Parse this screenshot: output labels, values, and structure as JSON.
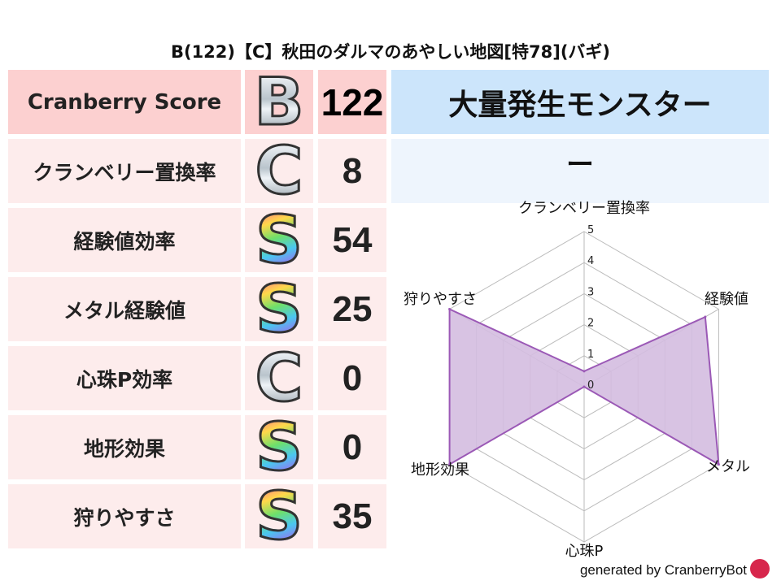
{
  "title": "B(122)【C】秋田のダルマのあやしい地図[特78](バギ)",
  "score_table": {
    "header": {
      "label": "Cranberry Score",
      "grade": "B",
      "value": "122"
    },
    "rows": [
      {
        "label": "クランベリー置換率",
        "grade": "C",
        "value": "8"
      },
      {
        "label": "経験値効率",
        "grade": "S",
        "value": "54"
      },
      {
        "label": "メタル経験値",
        "grade": "S",
        "value": "25"
      },
      {
        "label": "心珠P効率",
        "grade": "C",
        "value": "0"
      },
      {
        "label": "地形効果",
        "grade": "S",
        "value": "0"
      },
      {
        "label": "狩りやすさ",
        "grade": "S",
        "value": "35"
      }
    ]
  },
  "monster": {
    "header": "大量発生モンスター",
    "value": "ー"
  },
  "chart_data": {
    "type": "radar",
    "categories": [
      "クランベリー置換率",
      "経験値",
      "メタル",
      "心珠P",
      "地形効果",
      "狩りやすさ"
    ],
    "values": [
      0.5,
      4.5,
      5,
      0,
      5,
      5
    ],
    "rlim": [
      0,
      5
    ],
    "ticks": [
      "0",
      "1",
      "2",
      "3",
      "4",
      "5"
    ],
    "grid": true,
    "colors": {
      "fill": "#d4bde0",
      "line": "#9b59b6",
      "grid": "#bbbbbb"
    }
  },
  "footer": {
    "text": "generated by CranberryBot"
  },
  "colors": {
    "header_row": "#fcd0d0",
    "row": "#fdecec",
    "monster_header": "#cce5fb",
    "monster_value": "#eef5fd"
  }
}
